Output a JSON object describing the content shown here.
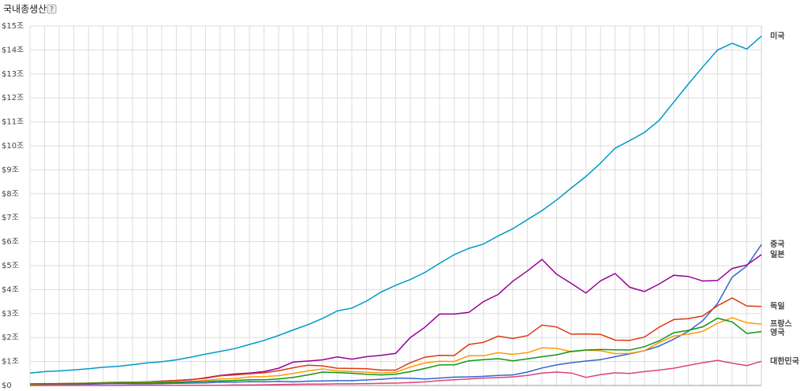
{
  "chart_data": {
    "type": "line",
    "title": "국내총생산",
    "help_icon": "?",
    "categories": [
      null,
      null,
      null,
      null,
      null,
      null,
      null,
      null,
      null,
      null,
      null,
      null,
      null,
      null,
      null,
      null,
      null,
      null,
      null,
      null,
      null,
      null,
      null,
      null,
      null,
      null,
      null,
      null,
      null,
      null,
      null,
      null,
      null,
      null,
      null,
      null,
      null,
      null,
      null,
      null,
      null,
      null,
      null,
      null,
      null,
      null,
      null,
      null,
      null,
      null,
      null
    ],
    "ylim": [
      0,
      15
    ],
    "yticks": [
      {
        "value": 0,
        "label": "$0"
      },
      {
        "value": 1,
        "label": "$1조"
      },
      {
        "value": 2,
        "label": "$2조"
      },
      {
        "value": 3,
        "label": "$3조"
      },
      {
        "value": 4,
        "label": "$4조"
      },
      {
        "value": 5,
        "label": "$5조"
      },
      {
        "value": 6,
        "label": "$6조"
      },
      {
        "value": 7,
        "label": "$7조"
      },
      {
        "value": 8,
        "label": "$8조"
      },
      {
        "value": 9,
        "label": "$9조"
      },
      {
        "value": 10,
        "label": "$10조"
      },
      {
        "value": 11,
        "label": "$11조"
      },
      {
        "value": 12,
        "label": "$12조"
      },
      {
        "value": 13,
        "label": "$13조"
      },
      {
        "value": 14,
        "label": "$14조"
      },
      {
        "value": 15,
        "label": "$15조"
      }
    ],
    "grid": true,
    "series": [
      {
        "name": "미국",
        "color": "#0099c6",
        "values": [
          0.52,
          0.58,
          0.61,
          0.65,
          0.7,
          0.76,
          0.8,
          0.87,
          0.94,
          0.99,
          1.07,
          1.18,
          1.31,
          1.42,
          1.54,
          1.71,
          1.88,
          2.09,
          2.32,
          2.54,
          2.8,
          3.11,
          3.23,
          3.52,
          3.9,
          4.18,
          4.42,
          4.72,
          5.1,
          5.46,
          5.72,
          5.9,
          6.24,
          6.54,
          6.92,
          7.3,
          7.74,
          8.24,
          8.72,
          9.28,
          9.9,
          10.22,
          10.56,
          11.06,
          11.82,
          12.58,
          13.3,
          14.0,
          14.28,
          14.04,
          14.58
        ]
      },
      {
        "name": "중국",
        "color": "#3366cc",
        "values": [
          0.06,
          0.05,
          0.05,
          0.05,
          0.06,
          0.07,
          0.08,
          0.07,
          0.07,
          0.08,
          0.09,
          0.1,
          0.11,
          0.14,
          0.14,
          0.16,
          0.15,
          0.17,
          0.15,
          0.18,
          0.19,
          0.2,
          0.2,
          0.23,
          0.26,
          0.31,
          0.3,
          0.27,
          0.31,
          0.35,
          0.36,
          0.38,
          0.42,
          0.44,
          0.56,
          0.73,
          0.86,
          0.95,
          1.02,
          1.08,
          1.2,
          1.32,
          1.45,
          1.64,
          1.93,
          2.26,
          2.71,
          3.42,
          4.52,
          4.99,
          5.88
        ]
      },
      {
        "name": "일본",
        "color": "#990099",
        "values": [
          0.04,
          0.05,
          0.06,
          0.07,
          0.08,
          0.09,
          0.11,
          0.13,
          0.15,
          0.18,
          0.21,
          0.24,
          0.32,
          0.42,
          0.48,
          0.52,
          0.58,
          0.72,
          0.98,
          1.02,
          1.07,
          1.19,
          1.1,
          1.2,
          1.26,
          1.34,
          2.0,
          2.43,
          2.98,
          2.98,
          3.05,
          3.5,
          3.8,
          4.35,
          4.78,
          5.26,
          4.64,
          4.26,
          3.86,
          4.37,
          4.67,
          4.1,
          3.92,
          4.23,
          4.6,
          4.55,
          4.36,
          4.38,
          4.88,
          5.03,
          5.46
        ]
      },
      {
        "name": "독일",
        "color": "#dc3912",
        "values": [
          0.06,
          0.07,
          0.08,
          0.09,
          0.1,
          0.12,
          0.13,
          0.14,
          0.15,
          0.17,
          0.21,
          0.25,
          0.3,
          0.4,
          0.44,
          0.49,
          0.53,
          0.62,
          0.74,
          0.85,
          0.82,
          0.72,
          0.71,
          0.7,
          0.64,
          0.64,
          0.95,
          1.18,
          1.26,
          1.25,
          1.71,
          1.8,
          2.06,
          1.96,
          2.08,
          2.52,
          2.44,
          2.14,
          2.15,
          2.13,
          1.89,
          1.88,
          2.02,
          2.43,
          2.75,
          2.79,
          2.9,
          3.33,
          3.65,
          3.32,
          3.3
        ]
      },
      {
        "name": "프랑스",
        "color": "#ff9900",
        "values": [
          0.06,
          0.07,
          0.07,
          0.08,
          0.09,
          0.1,
          0.11,
          0.12,
          0.13,
          0.14,
          0.15,
          0.17,
          0.21,
          0.27,
          0.29,
          0.36,
          0.37,
          0.41,
          0.5,
          0.61,
          0.69,
          0.61,
          0.58,
          0.56,
          0.52,
          0.55,
          0.77,
          0.94,
          1.01,
          1.0,
          1.24,
          1.24,
          1.37,
          1.3,
          1.37,
          1.57,
          1.55,
          1.41,
          1.47,
          1.45,
          1.33,
          1.34,
          1.45,
          1.79,
          2.06,
          2.14,
          2.26,
          2.6,
          2.83,
          2.62,
          2.56
        ]
      },
      {
        "name": "영국",
        "color": "#109618",
        "values": [
          0.07,
          0.08,
          0.08,
          0.08,
          0.09,
          0.1,
          0.11,
          0.11,
          0.11,
          0.12,
          0.13,
          0.15,
          0.17,
          0.19,
          0.21,
          0.24,
          0.24,
          0.27,
          0.34,
          0.44,
          0.56,
          0.54,
          0.51,
          0.47,
          0.44,
          0.47,
          0.58,
          0.71,
          0.86,
          0.86,
          1.03,
          1.08,
          1.12,
          1.03,
          1.11,
          1.2,
          1.28,
          1.42,
          1.48,
          1.5,
          1.49,
          1.48,
          1.62,
          1.86,
          2.2,
          2.3,
          2.45,
          2.81,
          2.65,
          2.17,
          2.25
        ]
      },
      {
        "name": "대한민국",
        "color": "#dd4477",
        "values": [
          0.0,
          0.0,
          0.0,
          0.0,
          0.0,
          0.0,
          0.0,
          0.01,
          0.01,
          0.01,
          0.01,
          0.01,
          0.01,
          0.01,
          0.02,
          0.02,
          0.03,
          0.04,
          0.05,
          0.06,
          0.06,
          0.07,
          0.07,
          0.08,
          0.09,
          0.1,
          0.12,
          0.15,
          0.2,
          0.24,
          0.27,
          0.31,
          0.33,
          0.36,
          0.42,
          0.52,
          0.56,
          0.52,
          0.34,
          0.45,
          0.53,
          0.5,
          0.58,
          0.64,
          0.72,
          0.84,
          0.95,
          1.05,
          0.93,
          0.83,
          1.01
        ]
      }
    ]
  }
}
